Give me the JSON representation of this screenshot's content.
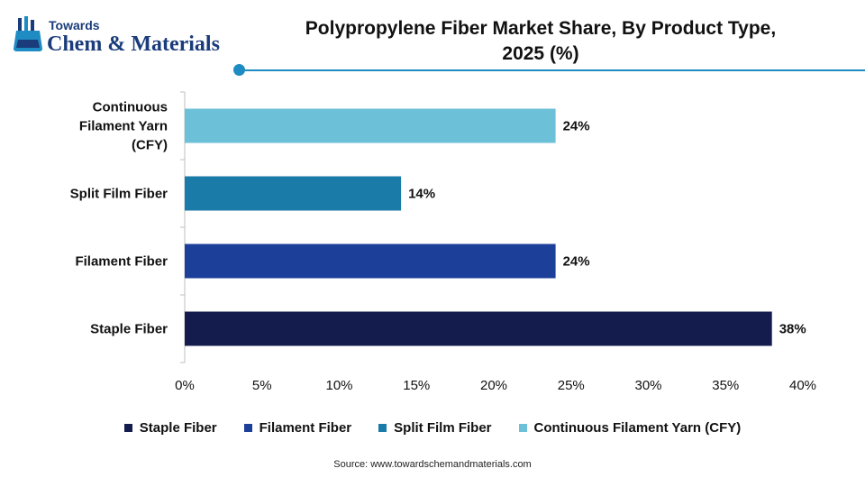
{
  "logo": {
    "top_text": "Towards",
    "main_text": "Chem & Materials",
    "icon": "flask-icon"
  },
  "title_lines": [
    "Polypropylene Fiber Market Share, By Product Type,",
    "2025 (%)"
  ],
  "chart_data": {
    "type": "bar",
    "orientation": "horizontal",
    "categories": [
      [
        "Continuous",
        "Filament Yarn",
        "(CFY)"
      ],
      [
        "Split Film Fiber"
      ],
      [
        "Filament Fiber"
      ],
      [
        "Staple Fiber"
      ]
    ],
    "values": [
      24,
      14,
      24,
      38
    ],
    "value_labels": [
      "24%",
      "14%",
      "24%",
      "38%"
    ],
    "colors": [
      "#6cc0d8",
      "#1a7aa8",
      "#1c3f9a",
      "#141c4e"
    ],
    "xlim": [
      0,
      40
    ],
    "xticks": [
      "0%",
      "5%",
      "10%",
      "15%",
      "20%",
      "25%",
      "30%",
      "35%",
      "40%"
    ],
    "grid": false
  },
  "legend": [
    {
      "label": "Staple Fiber",
      "color": "#141c4e"
    },
    {
      "label": "Filament Fiber",
      "color": "#1c3f9a"
    },
    {
      "label": "Split Film Fiber",
      "color": "#1a7aa8"
    },
    {
      "label": "Continuous Filament Yarn (CFY)",
      "color": "#6cc0d8"
    }
  ],
  "source": "Source: www.towardschemandmaterials.com"
}
